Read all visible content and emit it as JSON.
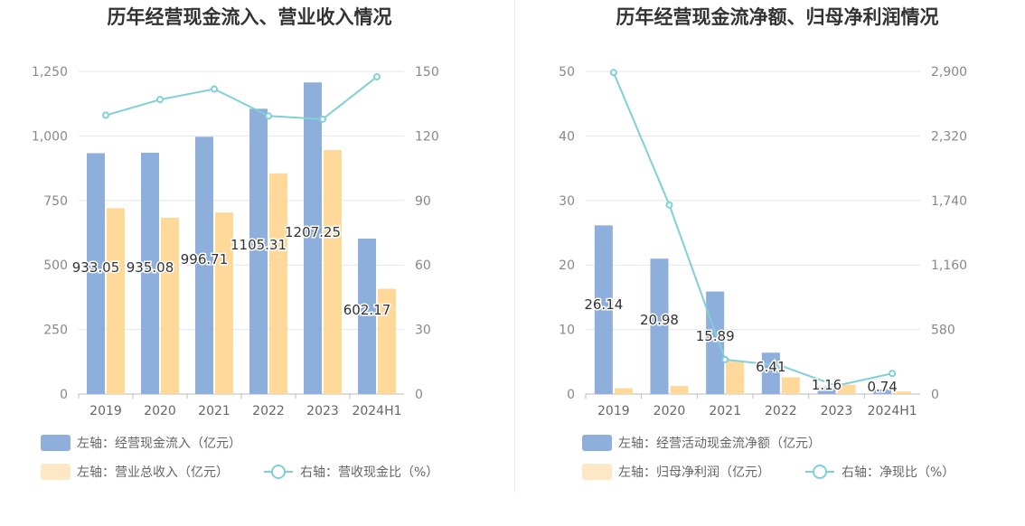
{
  "colors": {
    "bar_primary": "#8eaedb",
    "bar_secondary": "#ffd89a",
    "legend_secondary": "#fde7c5",
    "line": "#7fd0d7",
    "grid": "#e3e6f0",
    "axis": "#bbbbbb"
  },
  "chart_data": [
    {
      "type": "bar",
      "title": "历年经营现金流入、营业收入情况",
      "categories": [
        "2019",
        "2020",
        "2021",
        "2022",
        "2023",
        "2024H1"
      ],
      "left_axis": {
        "ylim": [
          0,
          1250
        ],
        "ticks": [
          "0",
          "250",
          "500",
          "750",
          "1,000",
          "1,250"
        ]
      },
      "right_axis": {
        "ylim": [
          0,
          150
        ],
        "ticks": [
          "0",
          "30",
          "60",
          "90",
          "120",
          "150"
        ]
      },
      "series": [
        {
          "name": "左轴：经营现金流入（亿元）",
          "kind": "bar",
          "axis": "left",
          "values": [
            933.05,
            935.08,
            996.71,
            1105.31,
            1207.25,
            602.17
          ],
          "labels": [
            "933.05",
            "935.08",
            "996.71",
            "1105.31",
            "1207.25",
            "602.17"
          ]
        },
        {
          "name": "左轴：营业总收入（亿元）",
          "kind": "bar",
          "axis": "left",
          "values": [
            720,
            683,
            703,
            855,
            945,
            408
          ]
        },
        {
          "name": "右轴：营收现金比（%）",
          "kind": "line",
          "axis": "right",
          "values": [
            129.6,
            136.9,
            141.8,
            129.3,
            127.8,
            147.5
          ]
        }
      ]
    },
    {
      "type": "bar",
      "title": "历年经营现金流净额、归母净利润情况",
      "categories": [
        "2019",
        "2020",
        "2021",
        "2022",
        "2023",
        "2024H1"
      ],
      "left_axis": {
        "ylim": [
          0,
          50
        ],
        "ticks": [
          "0",
          "10",
          "20",
          "30",
          "40",
          "50"
        ]
      },
      "right_axis": {
        "ylim": [
          0,
          2900
        ],
        "ticks": [
          "0",
          "580",
          "1,160",
          "1,740",
          "2,320",
          "2,900"
        ]
      },
      "series": [
        {
          "name": "左轴：经营活动现金流净额（亿元）",
          "kind": "bar",
          "axis": "left",
          "values": [
            26.14,
            20.98,
            15.89,
            6.41,
            1.16,
            0.74
          ],
          "labels": [
            "26.14",
            "20.98",
            "15.89",
            "6.41",
            "1.16",
            "0.74"
          ]
        },
        {
          "name": "左轴：归母净利润（亿元）",
          "kind": "bar",
          "axis": "left",
          "values": [
            0.9,
            1.25,
            5.15,
            2.6,
            1.45,
            0.4
          ]
        },
        {
          "name": "右轴：净现比（%）",
          "kind": "line",
          "axis": "right",
          "values": [
            2890,
            1700,
            310,
            255,
            75,
            185
          ]
        }
      ]
    }
  ]
}
